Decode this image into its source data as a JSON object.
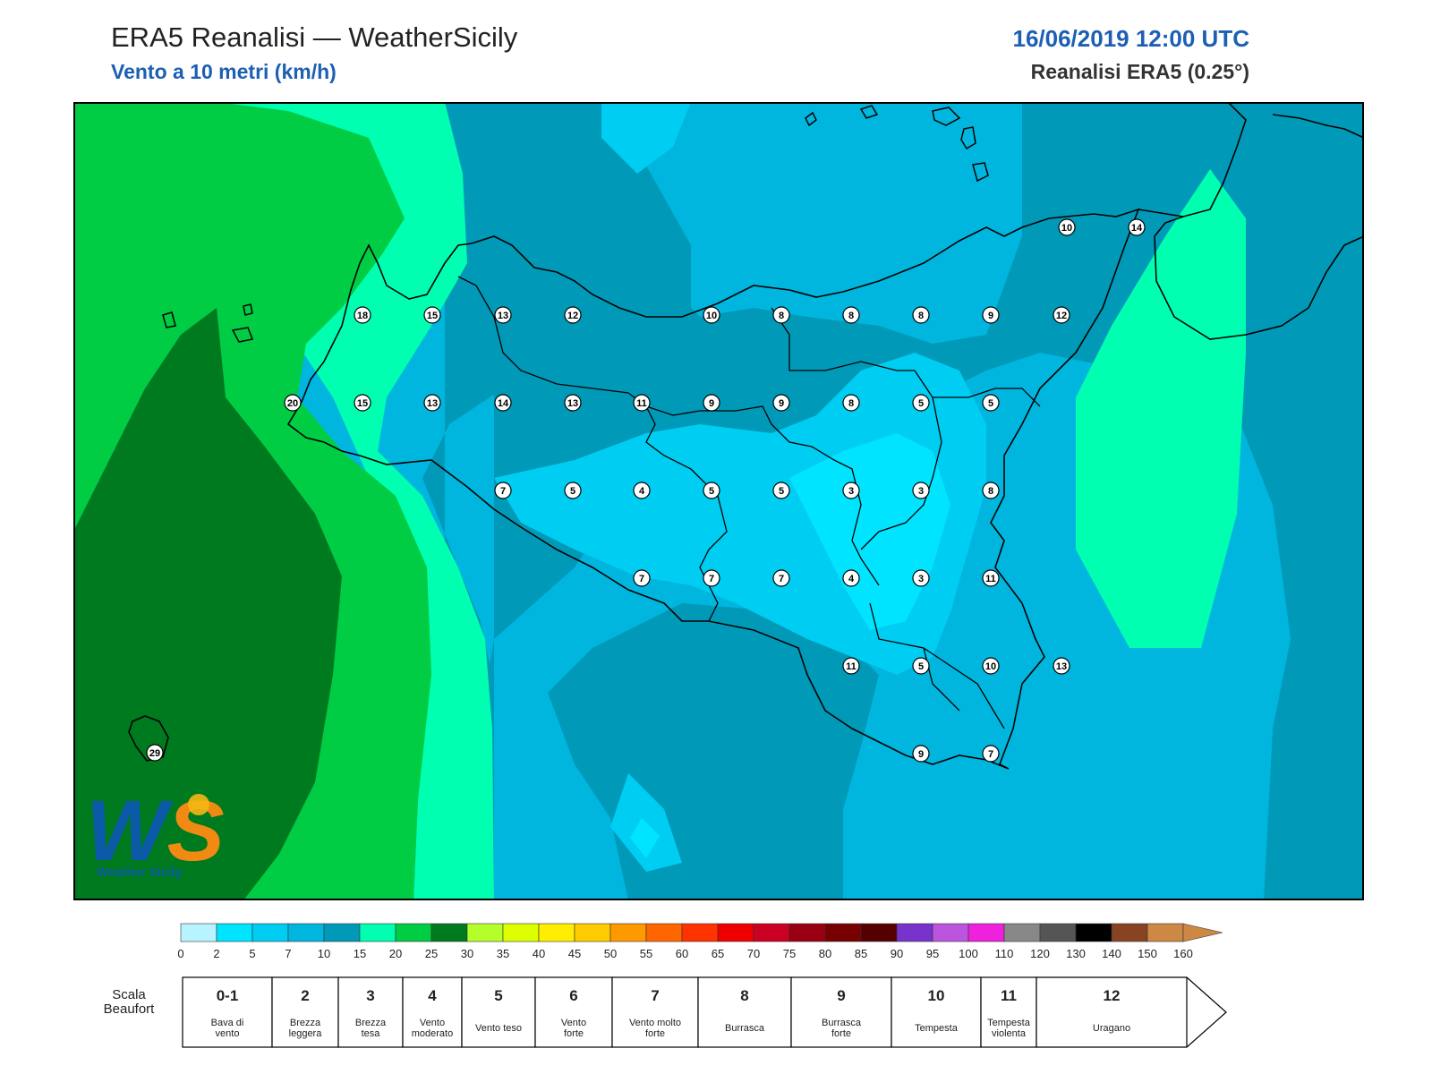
{
  "header": {
    "title": "ERA5 Reanalisi — WeatherSicily",
    "subtitle": "Vento a 10 metri (km/h)",
    "datetime": "16/06/2019 12:00 UTC",
    "source": "Reanalisi ERA5 (0.25°)"
  },
  "logo": {
    "letters": "WS",
    "text": "Weather Sicily"
  },
  "colorbar": {
    "ticks": [
      "0",
      "2",
      "5",
      "7",
      "10",
      "15",
      "20",
      "25",
      "30",
      "35",
      "40",
      "45",
      "50",
      "55",
      "60",
      "65",
      "70",
      "75",
      "80",
      "85",
      "90",
      "95",
      "100",
      "110",
      "120",
      "130",
      "140",
      "150",
      "160"
    ],
    "colors": [
      "#b8f4ff",
      "#00e4ff",
      "#00cdf2",
      "#00b6df",
      "#0099b8",
      "#00ffb0",
      "#00cc44",
      "#007a1e",
      "#b4ff2a",
      "#ddff00",
      "#ffee00",
      "#ffcc00",
      "#ff9900",
      "#ff6600",
      "#ff3300",
      "#ee0000",
      "#cc0022",
      "#990011",
      "#770000",
      "#550000",
      "#7733cc",
      "#bb55dd",
      "#ee22dd",
      "#888888",
      "#555555",
      "#000000",
      "#884422",
      "#cc8844"
    ]
  },
  "beaufort": {
    "label_line1": "Scala",
    "label_line2": "Beaufort",
    "classes": [
      {
        "num": "0-1",
        "line1": "Bava di",
        "line2": "vento"
      },
      {
        "num": "2",
        "line1": "Brezza",
        "line2": "leggera"
      },
      {
        "num": "3",
        "line1": "Brezza",
        "line2": "tesa"
      },
      {
        "num": "4",
        "line1": "Vento",
        "line2": "moderato"
      },
      {
        "num": "5",
        "line1": "Vento teso",
        "line2": ""
      },
      {
        "num": "6",
        "line1": "Vento",
        "line2": "forte"
      },
      {
        "num": "7",
        "line1": "Vento molto",
        "line2": "forte"
      },
      {
        "num": "8",
        "line1": "Burrasca",
        "line2": ""
      },
      {
        "num": "9",
        "line1": "Burrasca",
        "line2": "forte"
      },
      {
        "num": "10",
        "line1": "Tempesta",
        "line2": ""
      },
      {
        "num": "11",
        "line1": "Tempesta",
        "line2": "violenta"
      },
      {
        "num": "12",
        "line1": "Uragano",
        "line2": ""
      }
    ]
  },
  "map": {
    "fill_colors": {
      "dark_green": "#007a1e",
      "green": "#00cc44",
      "mint": "#00ffb0",
      "teal_dark": "#0099b8",
      "teal": "#00b6df",
      "cyan": "#00cdf2",
      "cyan_light": "#00e4ff"
    },
    "station_values": [
      {
        "v": "10"
      },
      {
        "v": "14"
      },
      {
        "v": "18"
      },
      {
        "v": "15"
      },
      {
        "v": "13"
      },
      {
        "v": "12"
      },
      {
        "v": "10"
      },
      {
        "v": "8"
      },
      {
        "v": "8"
      },
      {
        "v": "8"
      },
      {
        "v": "9"
      },
      {
        "v": "12"
      },
      {
        "v": "20"
      },
      {
        "v": "15"
      },
      {
        "v": "13"
      },
      {
        "v": "14"
      },
      {
        "v": "13"
      },
      {
        "v": "11"
      },
      {
        "v": "9"
      },
      {
        "v": "9"
      },
      {
        "v": "8"
      },
      {
        "v": "5"
      },
      {
        "v": "5"
      },
      {
        "v": "7"
      },
      {
        "v": "5"
      },
      {
        "v": "4"
      },
      {
        "v": "5"
      },
      {
        "v": "5"
      },
      {
        "v": "3"
      },
      {
        "v": "3"
      },
      {
        "v": "8"
      },
      {
        "v": "7"
      },
      {
        "v": "7"
      },
      {
        "v": "7"
      },
      {
        "v": "4"
      },
      {
        "v": "3"
      },
      {
        "v": "11"
      },
      {
        "v": "11"
      },
      {
        "v": "5"
      },
      {
        "v": "10"
      },
      {
        "v": "13"
      },
      {
        "v": "9"
      },
      {
        "v": "7"
      },
      {
        "v": "29"
      }
    ]
  }
}
